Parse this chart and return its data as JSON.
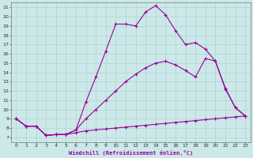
{
  "xlabel": "Windchill (Refroidissement éolien,°C)",
  "background_color": "#cce8e8",
  "line_color": "#990099",
  "xlim": [
    -0.5,
    23.5
  ],
  "ylim": [
    6.5,
    21.5
  ],
  "xticks": [
    0,
    1,
    2,
    3,
    4,
    5,
    6,
    7,
    8,
    9,
    10,
    11,
    12,
    13,
    14,
    15,
    16,
    17,
    18,
    19,
    20,
    21,
    22,
    23
  ],
  "yticks": [
    7,
    8,
    9,
    10,
    11,
    12,
    13,
    14,
    15,
    16,
    17,
    18,
    19,
    20,
    21
  ],
  "line1_x": [
    0,
    1,
    2,
    3,
    4,
    5,
    6,
    7,
    8,
    9,
    10,
    11,
    12,
    13,
    14,
    15,
    16,
    17,
    18,
    19,
    20,
    21,
    22,
    23
  ],
  "line1_y": [
    9.0,
    8.2,
    8.2,
    7.2,
    7.3,
    7.3,
    7.5,
    7.7,
    7.8,
    7.9,
    8.0,
    8.1,
    8.2,
    8.3,
    8.4,
    8.5,
    8.6,
    8.7,
    8.8,
    8.9,
    9.0,
    9.1,
    9.2,
    9.3
  ],
  "line2_x": [
    0,
    1,
    2,
    3,
    4,
    5,
    6,
    7,
    8,
    9,
    10,
    11,
    12,
    13,
    14,
    15,
    16,
    17,
    18,
    19,
    20,
    21,
    22,
    23
  ],
  "line2_y": [
    9.0,
    8.2,
    8.2,
    7.2,
    7.3,
    7.3,
    7.8,
    9.0,
    10.0,
    11.0,
    12.0,
    13.0,
    13.8,
    14.5,
    15.0,
    15.2,
    14.8,
    14.2,
    13.5,
    15.5,
    15.2,
    12.2,
    10.2,
    9.3
  ],
  "line3_x": [
    0,
    1,
    2,
    3,
    4,
    5,
    6,
    7,
    8,
    9,
    10,
    11,
    12,
    13,
    14,
    15,
    16,
    17,
    18,
    19,
    20,
    21,
    22,
    23
  ],
  "line3_y": [
    9.0,
    8.2,
    8.2,
    7.2,
    7.3,
    7.3,
    7.8,
    10.8,
    13.5,
    16.3,
    19.2,
    19.2,
    19.0,
    20.5,
    21.2,
    20.2,
    18.5,
    17.0,
    17.2,
    16.5,
    15.2,
    12.3,
    10.2,
    9.3
  ]
}
